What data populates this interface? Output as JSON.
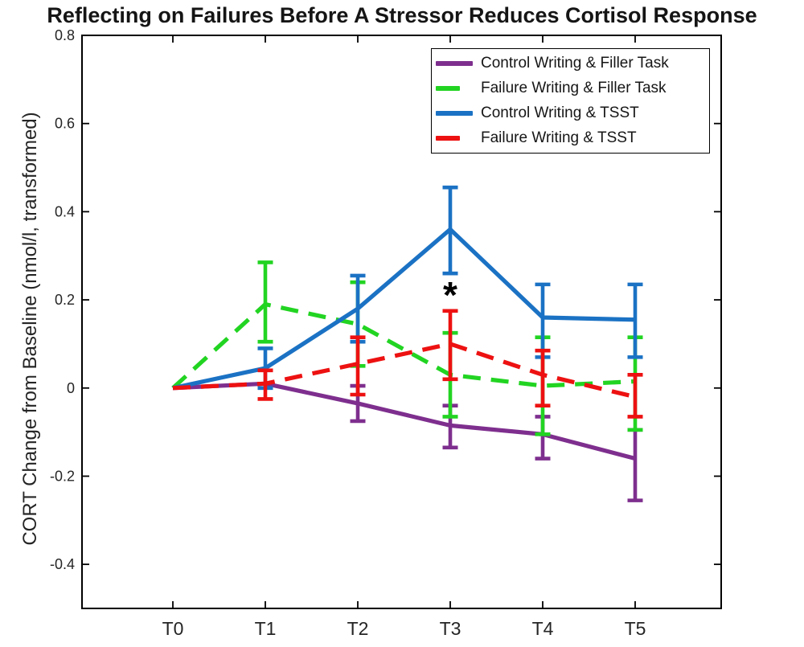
{
  "chart_data": {
    "type": "line",
    "title": "Reflecting on Failures Before A Stressor Reduces Cortisol Response",
    "ylabel": "CORT Change from Baseline (nmol/l, transformed)",
    "xlabel": "",
    "categories": [
      "T0",
      "T1",
      "T2",
      "T3",
      "T4",
      "T5"
    ],
    "ylim": [
      -0.5,
      0.8
    ],
    "yticks": [
      -0.4,
      -0.2,
      0,
      0.2,
      0.4,
      0.6,
      0.8
    ],
    "ytick_labels": [
      "-0.4",
      "-0.2",
      "0",
      "0.2",
      "0.4",
      "0.6",
      "0.8"
    ],
    "grid": false,
    "box": true,
    "legend_position": "top-right",
    "series": [
      {
        "name": "Control Writing & Filler Task",
        "color": "#7E2F8E",
        "style": "solid",
        "values": [
          0,
          0.01,
          -0.035,
          -0.085,
          -0.105,
          -0.16
        ],
        "err_lo": [
          null,
          null,
          -0.075,
          -0.135,
          -0.16,
          -0.255
        ],
        "err_hi": [
          null,
          null,
          0.005,
          -0.04,
          -0.065,
          -0.095
        ]
      },
      {
        "name": "Failure Writing & Filler Task",
        "color": "#22D422",
        "style": "dashed",
        "values": [
          0,
          0.19,
          0.145,
          0.03,
          0.005,
          0.015
        ],
        "err_lo": [
          null,
          0.105,
          0.05,
          -0.065,
          -0.105,
          -0.095
        ],
        "err_hi": [
          null,
          0.285,
          0.24,
          0.125,
          0.115,
          0.115
        ]
      },
      {
        "name": "Control Writing & TSST",
        "color": "#1B72C4",
        "style": "solid",
        "values": [
          0,
          0.045,
          0.18,
          0.36,
          0.16,
          0.155
        ],
        "err_lo": [
          null,
          0.0,
          0.105,
          0.26,
          0.07,
          0.07
        ],
        "err_hi": [
          null,
          0.09,
          0.255,
          0.455,
          0.235,
          0.235
        ]
      },
      {
        "name": "Failure Writing & TSST",
        "color": "#ED1111",
        "style": "dashed",
        "values": [
          0,
          0.01,
          0.055,
          0.1,
          0.03,
          -0.02
        ],
        "err_lo": [
          null,
          -0.025,
          -0.015,
          0.02,
          -0.04,
          -0.065
        ],
        "err_hi": [
          null,
          0.04,
          0.115,
          0.175,
          0.085,
          0.03
        ]
      }
    ],
    "annotations": [
      {
        "text": "*",
        "x": "T3",
        "y": 0.215,
        "color": "#000000"
      }
    ]
  },
  "colors": {
    "axis": "#000000",
    "tick_text": "#252525",
    "background": "#ffffff"
  }
}
